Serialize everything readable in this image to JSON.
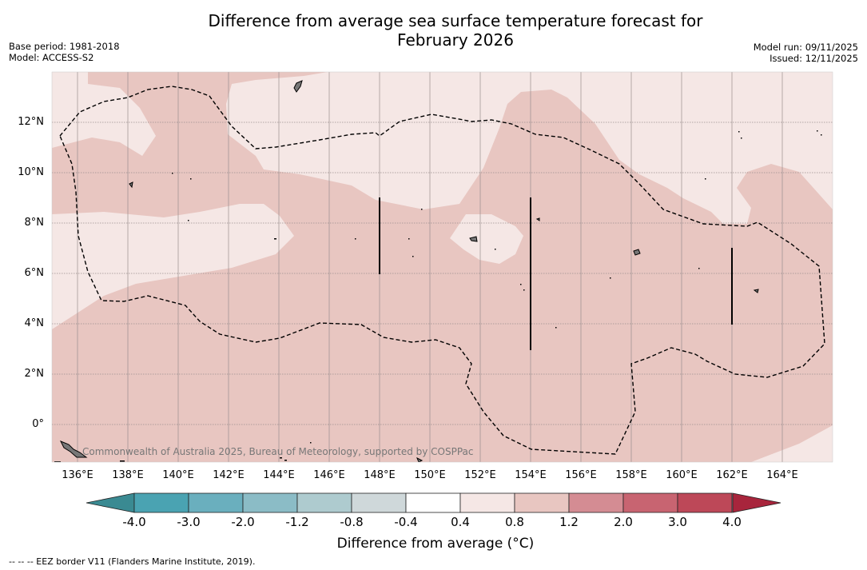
{
  "title_line1": "Difference from average sea surface temperature forecast for",
  "title_line2": "February 2026",
  "meta_left": {
    "base_period": "Base period: 1981-2018",
    "model": "Model: ACCESS-S2"
  },
  "meta_right": {
    "model_run": "Model run: 09/11/2025",
    "issued": "Issued: 12/11/2025"
  },
  "lat_labels": [
    "12°N",
    "10°N",
    "8°N",
    "6°N",
    "4°N",
    "2°N",
    "0°"
  ],
  "lon_labels": [
    "136°E",
    "138°E",
    "140°E",
    "142°E",
    "144°E",
    "146°E",
    "148°E",
    "150°E",
    "152°E",
    "154°E",
    "156°E",
    "158°E",
    "160°E",
    "162°E",
    "164°E"
  ],
  "copyright": "Commonwealth of Australia 2025, Bureau of Meteorology, supported by COSPPac",
  "colorbar": {
    "ticks": [
      "-4.0",
      "-3.0",
      "-2.0",
      "-1.2",
      "-0.8",
      "-0.4",
      "0.4",
      "0.8",
      "1.2",
      "2.0",
      "3.0",
      "4.0"
    ],
    "colors": [
      "#4aa3b2",
      "#6aafbe",
      "#8bbcc6",
      "#aecbcf",
      "#cfd8da",
      "#ffffff",
      "#f5e7e5",
      "#e8c6c1",
      "#d48c93",
      "#c86471",
      "#bd4858"
    ],
    "under_color": "#3a8a92",
    "over_color": "#a8253c",
    "label": "Difference from average (°C)"
  },
  "colors": {
    "light_fill": "#f5e7e5",
    "medium_fill": "#e8c6c1"
  },
  "footnote": "-- -- -- EEZ border V11 (Flanders Marine Institute, 2019)."
}
